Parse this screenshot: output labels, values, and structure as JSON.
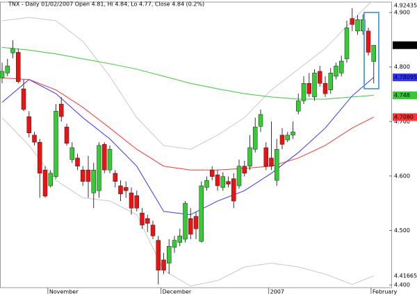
{
  "chart_data": {
    "type": "candlestick",
    "title": "TNX - Daily 01/02/2007 Open 4.81, Hi 4.84, Lo 4.77, Close 4.84 (0.2%)",
    "categories": [
      null,
      null,
      null,
      null,
      null,
      null,
      null,
      null,
      null,
      "November",
      null,
      null,
      null,
      null,
      null,
      null,
      null,
      null,
      null,
      null,
      null,
      null,
      null,
      null,
      null,
      null,
      null,
      null,
      null,
      null,
      "December",
      null,
      null,
      null,
      null,
      null,
      null,
      null,
      null,
      null,
      null,
      null,
      null,
      null,
      null,
      null,
      null,
      null,
      null,
      null,
      "2007",
      null,
      null,
      null,
      null,
      null,
      null,
      null,
      null,
      null,
      null,
      null,
      null,
      null,
      null,
      null,
      null,
      null,
      null,
      "February"
    ],
    "open": [
      4.78,
      4.789,
      4.826,
      4.827,
      4.76,
      4.709,
      4.675,
      4.662,
      4.611,
      4.582,
      4.599,
      4.732,
      4.69,
      4.63,
      4.633,
      4.611,
      4.611,
      4.569,
      4.573,
      4.658,
      4.611,
      4.605,
      4.582,
      4.579,
      4.569,
      4.564,
      4.532,
      4.522,
      4.51,
      4.482,
      4.446,
      4.44,
      4.469,
      4.478,
      4.484,
      4.522,
      4.526,
      4.48,
      4.579,
      4.611,
      4.602,
      4.579,
      4.59,
      4.595,
      4.582,
      4.618,
      4.618,
      4.649,
      4.691,
      4.652,
      4.633,
      4.592,
      4.675,
      4.666,
      4.675,
      4.719,
      4.738,
      4.77,
      4.745,
      4.792,
      4.77,
      4.758,
      4.783,
      4.789,
      4.815,
      4.889,
      4.866,
      4.866,
      4.866,
      4.81
    ],
    "high": [
      4.808,
      4.815,
      4.849,
      4.834,
      4.777,
      4.719,
      4.681,
      4.668,
      4.618,
      4.611,
      4.732,
      4.745,
      4.696,
      4.662,
      4.641,
      4.618,
      4.637,
      4.624,
      4.662,
      4.662,
      4.656,
      4.611,
      4.592,
      4.59,
      4.579,
      4.573,
      4.541,
      4.529,
      4.518,
      4.49,
      4.459,
      4.484,
      4.49,
      4.503,
      4.554,
      4.541,
      4.535,
      4.59,
      4.599,
      4.618,
      4.611,
      4.607,
      4.599,
      4.605,
      4.63,
      4.628,
      4.675,
      4.707,
      4.722,
      4.662,
      4.7,
      4.668,
      4.688,
      4.681,
      4.7,
      4.751,
      4.783,
      4.789,
      4.796,
      4.802,
      4.783,
      4.798,
      4.808,
      4.821,
      4.885,
      4.908,
      4.895,
      4.897,
      4.872,
      4.84
    ],
    "low": [
      4.77,
      4.783,
      4.816,
      4.77,
      4.719,
      4.671,
      4.656,
      4.56,
      4.56,
      4.579,
      4.595,
      4.7,
      4.656,
      4.624,
      4.611,
      4.582,
      4.56,
      4.541,
      4.56,
      4.605,
      4.605,
      4.579,
      4.554,
      4.56,
      4.529,
      4.535,
      4.503,
      4.497,
      4.484,
      4.401,
      4.42,
      4.42,
      4.459,
      4.471,
      4.478,
      4.484,
      4.484,
      4.478,
      4.573,
      4.592,
      4.573,
      4.573,
      4.579,
      4.541,
      4.577,
      4.599,
      4.611,
      4.643,
      4.681,
      4.611,
      4.611,
      4.582,
      4.649,
      4.662,
      4.668,
      4.713,
      4.732,
      4.745,
      4.738,
      4.764,
      4.745,
      4.751,
      4.777,
      4.783,
      4.808,
      4.866,
      4.859,
      4.859,
      4.821,
      4.77
    ],
    "close": [
      4.792,
      4.802,
      4.834,
      4.773,
      4.722,
      4.679,
      4.662,
      4.605,
      4.563,
      4.605,
      4.719,
      4.709,
      4.66,
      4.652,
      4.618,
      4.59,
      4.59,
      4.611,
      4.656,
      4.611,
      4.649,
      4.59,
      4.567,
      4.573,
      4.541,
      4.541,
      4.51,
      4.513,
      4.49,
      4.427,
      4.427,
      4.471,
      4.482,
      4.49,
      4.55,
      4.493,
      4.503,
      4.582,
      4.592,
      4.599,
      4.582,
      4.599,
      4.585,
      4.554,
      4.618,
      4.605,
      4.652,
      4.69,
      4.713,
      4.618,
      4.618,
      4.649,
      4.658,
      4.675,
      4.681,
      4.738,
      4.77,
      4.751,
      4.789,
      4.77,
      4.751,
      4.789,
      4.802,
      4.811,
      4.872,
      4.878,
      4.887,
      4.887,
      4.827,
      4.84
    ],
    "up_color": "#33cc33",
    "down_color": "#ee1111",
    "close_label_color": "#000000",
    "series": [
      {
        "color": "#c8c8c8",
        "x": [
          0,
          5,
          10,
          15,
          20,
          25,
          30,
          35,
          40,
          45,
          50,
          55,
          60,
          65,
          69
        ],
        "values": [
          4.885,
          4.891,
          4.885,
          4.847,
          4.783,
          4.707,
          4.656,
          4.649,
          4.675,
          4.707,
          4.758,
          4.796,
          4.834,
          4.885,
          4.92435
        ]
      },
      {
        "color": "#c8c8c8",
        "x": [
          0,
          5,
          10,
          15,
          20,
          25,
          30,
          35,
          40,
          45,
          50,
          55,
          60,
          65,
          69
        ],
        "values": [
          4.707,
          4.656,
          4.592,
          4.56,
          4.554,
          4.529,
          4.427,
          4.398,
          4.408,
          4.433,
          4.44,
          4.433,
          4.42,
          4.401,
          4.41665
        ]
      },
      {
        "color": "#33cc33",
        "x": [
          0,
          5,
          10,
          15,
          20,
          25,
          30,
          35,
          40,
          45,
          50,
          55,
          60,
          65,
          69
        ],
        "values": [
          4.836,
          4.831,
          4.824,
          4.815,
          4.806,
          4.796,
          4.783,
          4.77,
          4.76,
          4.751,
          4.745,
          4.741,
          4.741,
          4.745,
          4.748
        ]
      },
      {
        "color": "#ff3333",
        "x": [
          0,
          5,
          10,
          15,
          20,
          25,
          30,
          35,
          40,
          45,
          50,
          55,
          60,
          65,
          69
        ],
        "values": [
          4.78,
          4.777,
          4.758,
          4.726,
          4.688,
          4.649,
          4.618,
          4.611,
          4.611,
          4.614,
          4.618,
          4.633,
          4.656,
          4.688,
          4.708
        ],
        "value_labels": [
          null,
          null,
          null,
          null,
          null,
          null,
          null,
          null,
          null,
          null,
          null,
          null,
          null,
          null,
          "4.7080"
        ]
      },
      {
        "color": "#3333ff",
        "x": [
          0,
          5,
          10,
          15,
          20,
          25,
          30,
          35,
          40,
          45,
          50,
          55,
          60,
          65,
          69
        ],
        "values": [
          4.735,
          4.777,
          4.751,
          4.707,
          4.668,
          4.618,
          4.535,
          4.529,
          4.554,
          4.573,
          4.605,
          4.643,
          4.688,
          4.747,
          4.78095
        ]
      }
    ],
    "ylim": [
      4.395,
      4.925
    ],
    "yticks": [
      {
        "value": 4.4,
        "label": "4.400"
      },
      {
        "value": 4.5,
        "label": "4.500"
      },
      {
        "value": 4.6,
        "label": "4.600"
      },
      {
        "value": 4.7,
        "label": "4.700"
      },
      {
        "value": 4.8,
        "label": "4.800"
      },
      {
        "value": 4.9,
        "label": "4.900"
      }
    ]
  }
}
